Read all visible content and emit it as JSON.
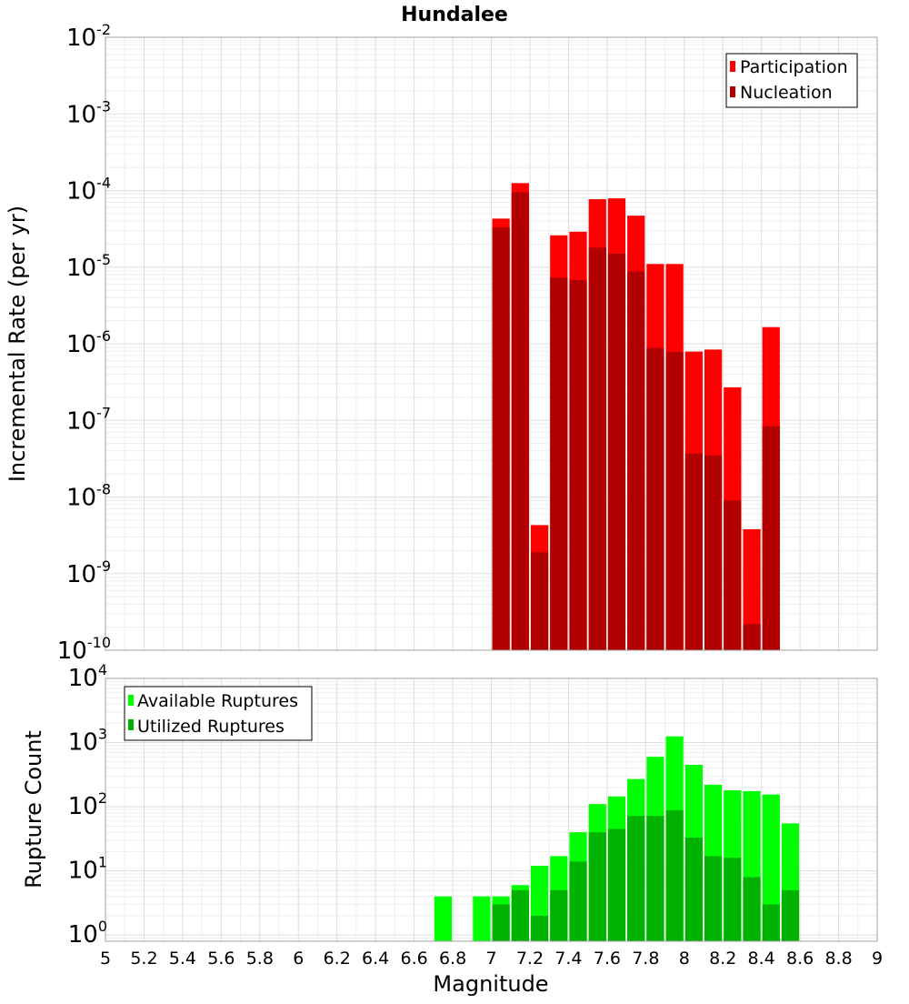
{
  "chart_data": [
    {
      "type": "bar",
      "title": "Hundalee",
      "xlabel": "",
      "ylabel": "Incremental Rate (per yr)",
      "yscale": "log",
      "ylim": [
        1e-10,
        0.01
      ],
      "xlim": [
        5,
        9
      ],
      "grid": true,
      "legend_position": "top-right",
      "y_ticks": [
        {
          "base": "10",
          "exp": "-10"
        },
        {
          "base": "10",
          "exp": "-9"
        },
        {
          "base": "10",
          "exp": "-8"
        },
        {
          "base": "10",
          "exp": "-7"
        },
        {
          "base": "10",
          "exp": "-6"
        },
        {
          "base": "10",
          "exp": "-5"
        },
        {
          "base": "10",
          "exp": "-4"
        },
        {
          "base": "10",
          "exp": "-3"
        },
        {
          "base": "10",
          "exp": "-2"
        }
      ],
      "x": [
        7.05,
        7.15,
        7.25,
        7.35,
        7.45,
        7.55,
        7.65,
        7.75,
        7.85,
        7.95,
        8.05,
        8.15,
        8.25,
        8.35,
        8.45
      ],
      "series": [
        {
          "name": "Participation",
          "color": "#ff0000",
          "values": [
            4.3e-05,
            0.000125,
            4.3e-09,
            2.6e-05,
            2.9e-05,
            7.7e-05,
            7.9e-05,
            4.7e-05,
            1.1e-05,
            1.1e-05,
            7.9e-07,
            8.4e-07,
            2.7e-07,
            3.8e-09,
            1.65e-06
          ]
        },
        {
          "name": "Nucleation",
          "color": "#b20000",
          "values": [
            3.3e-05,
            9.5e-05,
            1.9e-09,
            7.3e-06,
            6.8e-06,
            1.8e-05,
            1.5e-05,
            8.8e-06,
            8.8e-07,
            7.8e-07,
            3.7e-08,
            3.5e-08,
            9e-09,
            2.2e-10,
            8.4e-08
          ]
        }
      ]
    },
    {
      "type": "bar",
      "title": "",
      "xlabel": "Magnitude",
      "ylabel": "Rupture Count",
      "yscale": "log",
      "ylim": [
        0.8,
        10000
      ],
      "xlim": [
        5,
        9
      ],
      "grid": true,
      "legend_position": "top-left",
      "y_ticks": [
        {
          "base": "10",
          "exp": "0"
        },
        {
          "base": "10",
          "exp": "1"
        },
        {
          "base": "10",
          "exp": "2"
        },
        {
          "base": "10",
          "exp": "3"
        },
        {
          "base": "10",
          "exp": "4"
        }
      ],
      "x_tick_labels": [
        "5",
        "5.2",
        "5.4",
        "5.6",
        "5.8",
        "6",
        "6.2",
        "6.4",
        "6.6",
        "6.8",
        "7",
        "7.2",
        "7.4",
        "7.6",
        "7.8",
        "8",
        "8.2",
        "8.4",
        "8.6",
        "8.8",
        "9"
      ],
      "x": [
        6.75,
        6.95,
        7.05,
        7.15,
        7.25,
        7.35,
        7.45,
        7.55,
        7.65,
        7.75,
        7.85,
        7.95,
        8.05,
        8.15,
        8.25,
        8.35,
        8.45,
        8.55
      ],
      "series": [
        {
          "name": "Available Ruptures",
          "color": "#00ff00",
          "values": [
            4,
            4,
            4,
            6,
            12,
            17,
            40,
            110,
            145,
            270,
            600,
            1250,
            450,
            220,
            180,
            175,
            155,
            55
          ]
        },
        {
          "name": "Utilized Ruptures",
          "color": "#00b200",
          "values": [
            0,
            0,
            3,
            5,
            2,
            5,
            14,
            40,
            45,
            72,
            72,
            88,
            33,
            17,
            16,
            8,
            3,
            5
          ]
        }
      ]
    }
  ]
}
